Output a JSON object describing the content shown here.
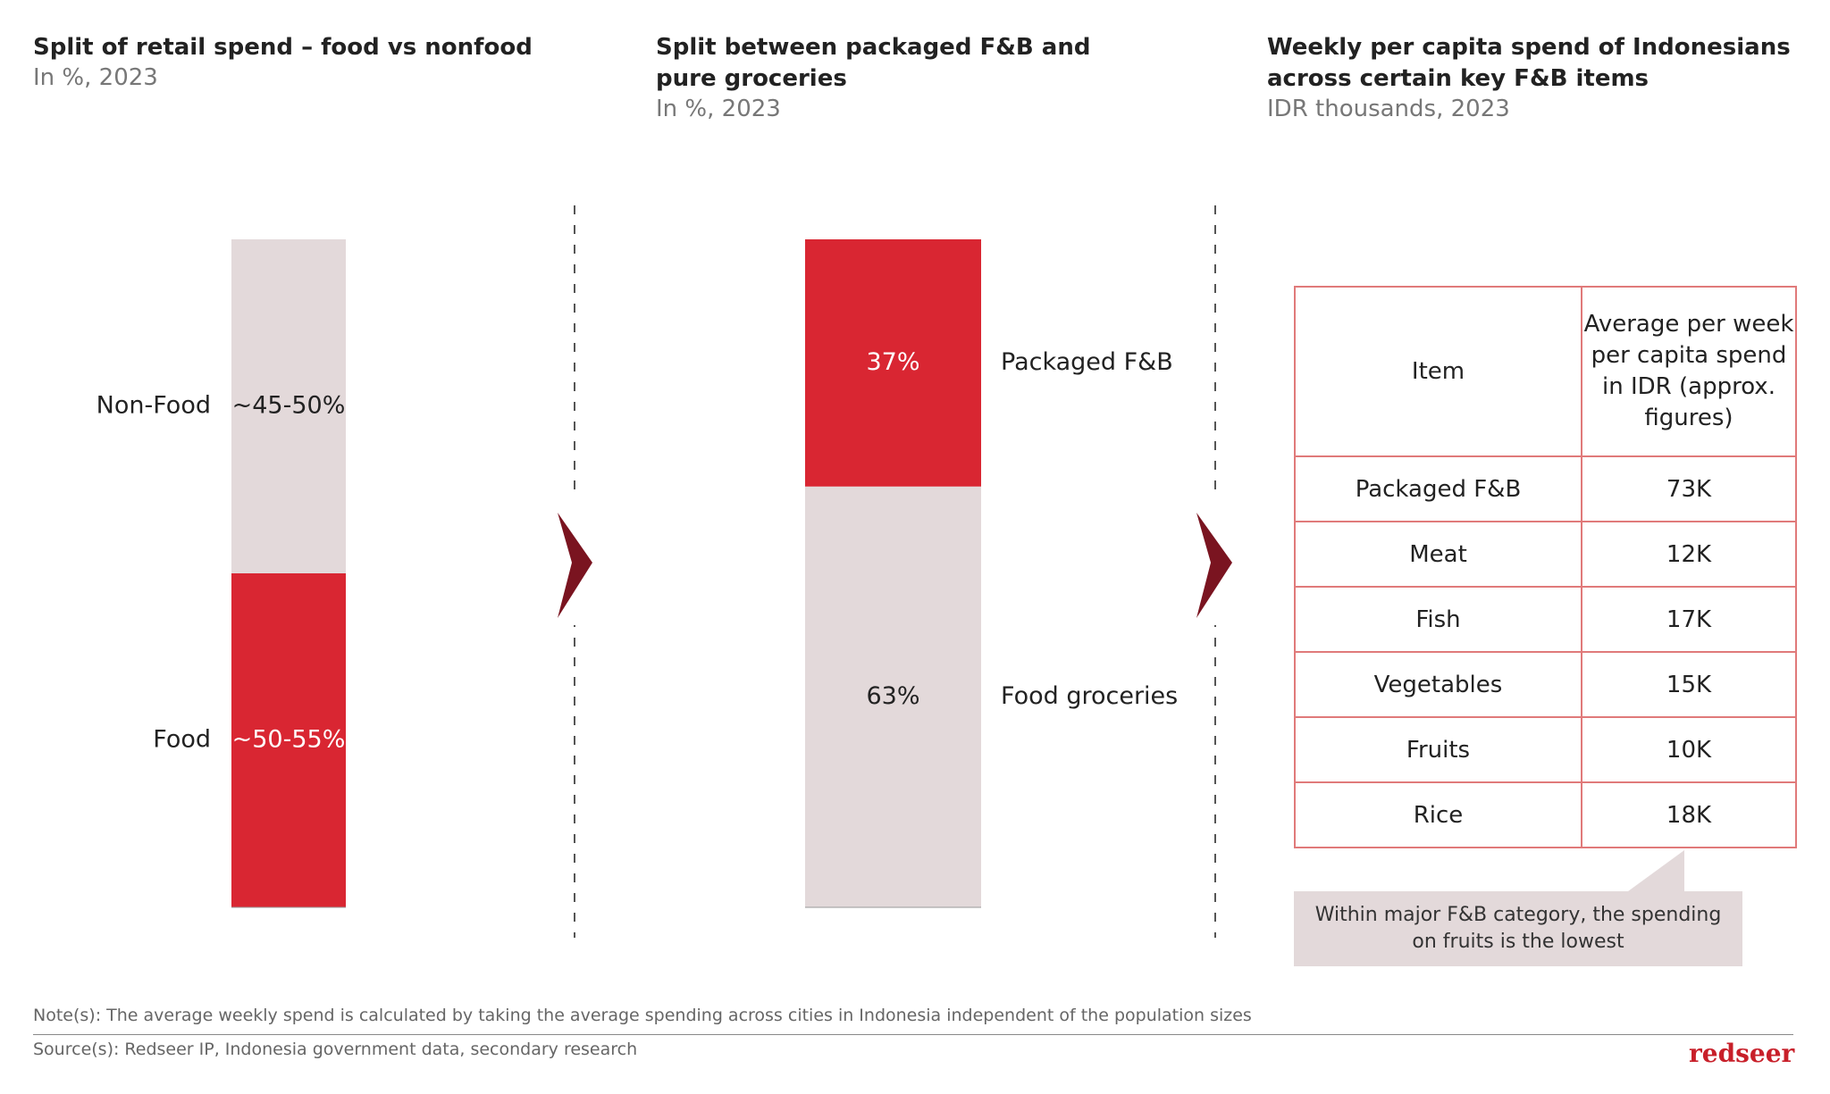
{
  "chart_data": [
    {
      "type": "stacked_bar",
      "title": "Split of retail spend – food vs nonfood",
      "subtitle": "In %, 2023",
      "label_side": "left",
      "series": [
        {
          "name": "Food",
          "color": "#d92632",
          "values": [
            50
          ],
          "value_labels": [
            "~50-55%"
          ]
        },
        {
          "name": "Non-Food",
          "color": "#e3d9da",
          "values": [
            50
          ],
          "value_labels": [
            "~45-50%"
          ]
        }
      ]
    },
    {
      "type": "stacked_bar",
      "title": "Split between packaged F&B and pure groceries",
      "subtitle": "In %, 2023",
      "label_side": "right",
      "series": [
        {
          "name": "Food groceries",
          "color": "#e3d9da",
          "values": [
            63
          ],
          "value_labels": [
            "63%"
          ]
        },
        {
          "name": "Packaged F&B",
          "color": "#d92632",
          "values": [
            37
          ],
          "value_labels": [
            "37%"
          ]
        }
      ]
    }
  ],
  "table": {
    "title": "Weekly per capita spend of Indonesians across certain key F&B items",
    "subtitle": "IDR thousands, 2023",
    "header": [
      "Item",
      "Average per week per capita spend in IDR (approx. figures)"
    ],
    "rows": [
      [
        "Packaged F&B",
        "73K"
      ],
      [
        "Meat",
        "12K"
      ],
      [
        "Fish",
        "17K"
      ],
      [
        "Vegetables",
        "15K"
      ],
      [
        "Fruits",
        "10K"
      ],
      [
        "Rice",
        "18K"
      ]
    ],
    "callout": "Within major F&B category, the spending on fruits is the lowest"
  },
  "note": "Note(s): The average weekly spend is calculated by taking the average spending across cities in Indonesia independent of the population sizes",
  "source": "Source(s): Redseer IP, Indonesia government data, secondary research",
  "logo": "redseer"
}
